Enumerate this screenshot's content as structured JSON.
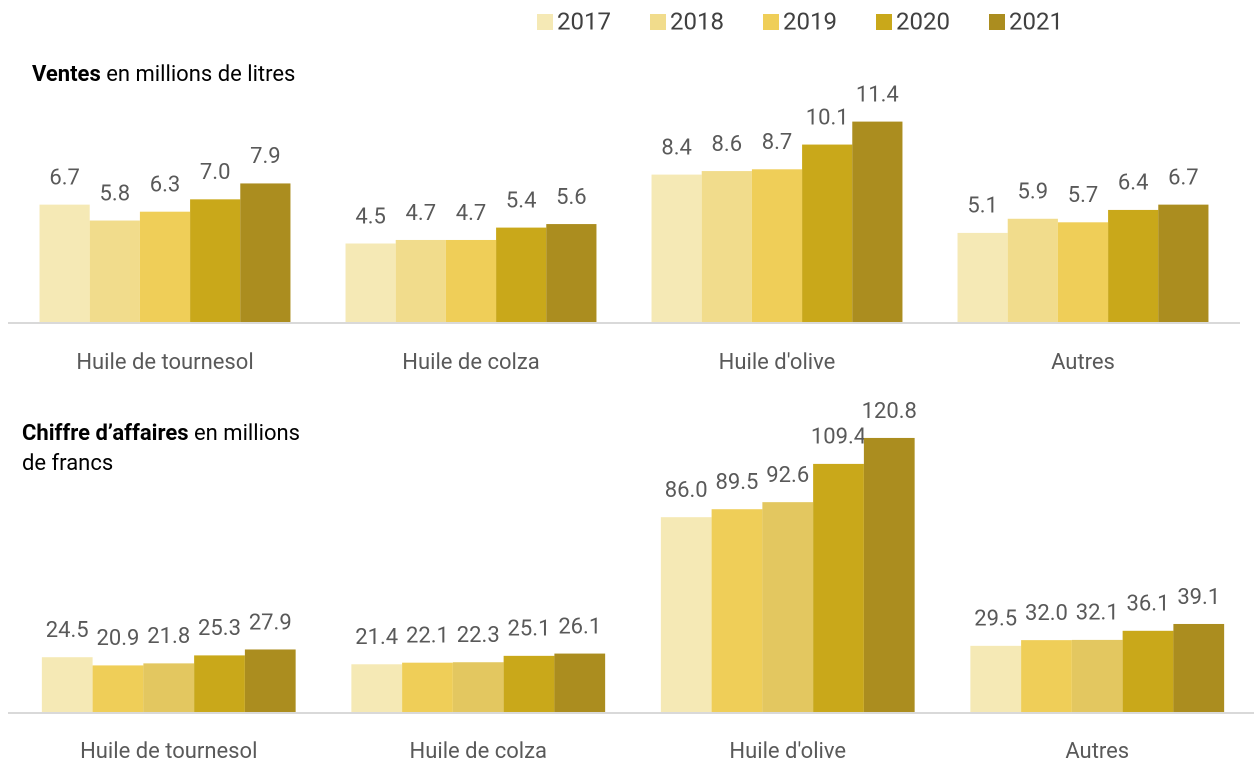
{
  "chart_data": [
    {
      "type": "bar",
      "title": "Ventes",
      "subtitle": "en millions de litres",
      "categories": [
        "Huile de tournesol",
        "Huile de colza",
        "Huile d'olive",
        "Autres"
      ],
      "ylim": [
        0,
        12
      ],
      "series": [
        {
          "name": "2017",
          "color": "#f5e9b5",
          "values": [
            6.7,
            4.5,
            8.4,
            5.1
          ],
          "value_labels": [
            "6.7",
            "4.5",
            "8.4",
            "5.1"
          ]
        },
        {
          "name": "2018",
          "color": "#f1dc8c",
          "values": [
            5.8,
            4.7,
            8.6,
            5.9
          ],
          "value_labels": [
            "5.8",
            "4.7",
            "8.6",
            "5.9"
          ]
        },
        {
          "name": "2019",
          "color": "#efce58",
          "values": [
            6.3,
            4.7,
            8.7,
            5.7
          ],
          "value_labels": [
            "6.3",
            "4.7",
            "8.7",
            "5.7"
          ]
        },
        {
          "name": "2020",
          "color": "#c9a81a",
          "values": [
            7.0,
            5.4,
            10.1,
            6.4
          ],
          "value_labels": [
            "7.0",
            "5.4",
            "10.1",
            "6.4"
          ]
        },
        {
          "name": "2021",
          "color": "#ab8d1f",
          "values": [
            7.9,
            5.6,
            11.4,
            6.7
          ],
          "value_labels": [
            "7.9",
            "5.6",
            "11.4",
            "6.7"
          ]
        }
      ]
    },
    {
      "type": "bar",
      "title": "Chiffre d’affaires",
      "subtitle": "en millions de francs",
      "categories": [
        "Huile de tournesol",
        "Huile de colza",
        "Huile d'olive",
        "Autres"
      ],
      "ylim": [
        0,
        130
      ],
      "series": [
        {
          "color": "#f5e9b5",
          "values": [
            24.5,
            21.4,
            86.0,
            29.5
          ],
          "value_labels": [
            "24.5",
            "21.4",
            "86.0",
            "29.5"
          ]
        },
        {
          "color": "#efce58",
          "values": [
            20.9,
            22.1,
            89.5,
            32.0
          ],
          "value_labels": [
            "20.9",
            "22.1",
            "89.5",
            "32.0"
          ]
        },
        {
          "color": "#e3c760",
          "values": [
            21.8,
            22.3,
            92.6,
            32.1
          ],
          "value_labels": [
            "21.8",
            "22.3",
            "92.6",
            "32.1"
          ]
        },
        {
          "color": "#c9a81a",
          "values": [
            25.3,
            25.1,
            109.4,
            36.1
          ],
          "value_labels": [
            "25.3",
            "25.1",
            "109.4",
            "36.1"
          ]
        },
        {
          "color": "#ab8d1f",
          "values": [
            27.9,
            26.1,
            120.8,
            39.1
          ],
          "value_labels": [
            "27.9",
            "26.1",
            "120.8",
            "39.1"
          ]
        }
      ]
    }
  ]
}
